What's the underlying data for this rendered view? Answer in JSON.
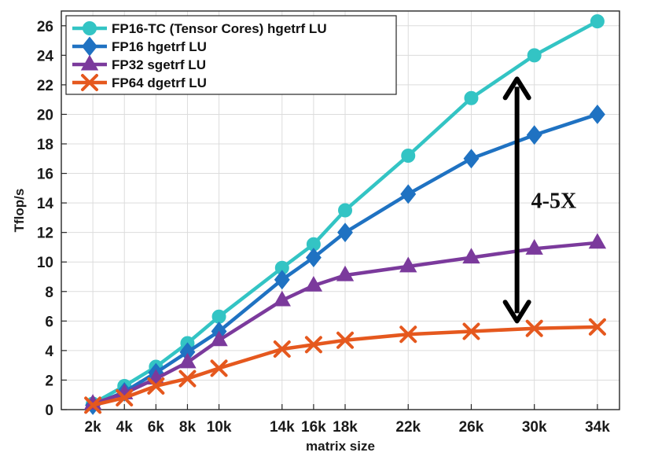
{
  "chart_data": {
    "type": "line",
    "title": "",
    "xlabel": "matrix size",
    "ylabel": "Tflop/s",
    "categories": [
      "2k",
      "4k",
      "6k",
      "8k",
      "10k",
      "14k",
      "16k",
      "18k",
      "22k",
      "26k",
      "30k",
      "34k"
    ],
    "x": [
      2,
      4,
      6,
      8,
      10,
      14,
      16,
      18,
      22,
      26,
      30,
      34
    ],
    "xlim": [
      0,
      35.4
    ],
    "ylim": [
      0,
      27
    ],
    "yticks": [
      0,
      2,
      4,
      6,
      8,
      10,
      12,
      14,
      16,
      18,
      20,
      22,
      24,
      26
    ],
    "grid": true,
    "legend_position": "top-left",
    "series": [
      {
        "name": "FP16-TC (Tensor Cores) hgetrf LU",
        "color": "#33C4C4",
        "marker": "circle",
        "values": [
          0.4,
          1.6,
          2.9,
          4.5,
          6.3,
          9.6,
          11.2,
          13.5,
          17.2,
          21.1,
          24.0,
          26.3
        ]
      },
      {
        "name": "FP16 hgetrf LU",
        "color": "#1F72C2",
        "marker": "diamond",
        "values": [
          0.3,
          1.2,
          2.5,
          3.9,
          5.3,
          8.8,
          10.3,
          12.0,
          14.6,
          17.0,
          18.6,
          20.0
        ]
      },
      {
        "name": "FP32 sgetrf LU",
        "color": "#7B3A9C",
        "marker": "triangle",
        "values": [
          0.4,
          1.1,
          2.1,
          3.2,
          4.7,
          7.4,
          8.4,
          9.1,
          9.7,
          10.3,
          10.9,
          11.3
        ]
      },
      {
        "name": "FP64 dgetrf LU",
        "color": "#E5581E",
        "marker": "x",
        "values": [
          0.3,
          0.8,
          1.6,
          2.1,
          2.8,
          4.1,
          4.4,
          4.7,
          5.1,
          5.3,
          5.5,
          5.6
        ]
      }
    ],
    "annotations": [
      {
        "text": "4-5X",
        "arrow": "double-headed vertical",
        "x": 29,
        "y_from": 22.4,
        "y_to": 6.0
      }
    ]
  }
}
